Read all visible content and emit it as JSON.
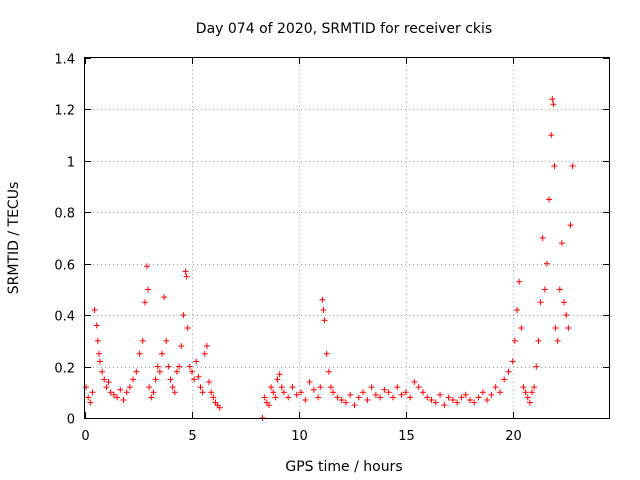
{
  "chart_data": {
    "type": "scatter",
    "title": "Day 074 of 2020, SRMTID for receiver ckis",
    "xlabel": "GPS time / hours",
    "ylabel": "SRMTID / TECUs",
    "xlim": [
      0,
      24.5
    ],
    "ylim": [
      0,
      1.4
    ],
    "x_ticks": [
      0,
      5,
      10,
      15,
      20
    ],
    "x_tick_labels": [
      "0",
      "5",
      "10",
      "15",
      "20"
    ],
    "y_ticks": [
      0,
      0.2,
      0.4,
      0.6,
      0.8,
      1.0,
      1.2,
      1.4
    ],
    "y_tick_labels": [
      "0",
      "0.2",
      "0.4",
      "0.6",
      "0.8",
      "1",
      "1.2",
      "1.4"
    ],
    "grid": true,
    "marker": "+",
    "color": "#ff0000",
    "series": [
      {
        "name": "SRMTID",
        "x": [
          0.05,
          0.15,
          0.25,
          0.35,
          0.45,
          0.55,
          0.6,
          0.65,
          0.7,
          0.8,
          0.9,
          1.0,
          1.1,
          1.2,
          1.35,
          1.5,
          1.65,
          1.8,
          1.95,
          2.1,
          2.25,
          2.4,
          2.55,
          2.7,
          2.8,
          2.9,
          2.95,
          3.0,
          3.1,
          3.2,
          3.3,
          3.4,
          3.5,
          3.6,
          3.7,
          3.8,
          3.9,
          4.0,
          4.1,
          4.2,
          4.3,
          4.4,
          4.5,
          4.6,
          4.7,
          4.75,
          4.8,
          4.9,
          5.0,
          5.1,
          5.2,
          5.3,
          5.4,
          5.5,
          5.6,
          5.7,
          5.8,
          5.9,
          6.0,
          6.1,
          6.2,
          6.3,
          8.3,
          8.4,
          8.5,
          8.6,
          8.7,
          8.8,
          8.9,
          9.0,
          9.1,
          9.2,
          9.3,
          9.5,
          9.7,
          9.9,
          10.1,
          10.3,
          10.5,
          10.7,
          10.9,
          11.0,
          11.1,
          11.15,
          11.2,
          11.3,
          11.4,
          11.5,
          11.6,
          11.8,
          12.0,
          12.2,
          12.4,
          12.6,
          12.8,
          13.0,
          13.2,
          13.4,
          13.6,
          13.8,
          14.0,
          14.2,
          14.4,
          14.6,
          14.8,
          15.0,
          15.2,
          15.4,
          15.6,
          15.8,
          16.0,
          16.2,
          16.4,
          16.6,
          16.8,
          17.0,
          17.2,
          17.4,
          17.6,
          17.8,
          18.0,
          18.2,
          18.4,
          18.6,
          18.8,
          19.0,
          19.2,
          19.4,
          19.6,
          19.8,
          20.0,
          20.1,
          20.2,
          20.3,
          20.4,
          20.5,
          20.6,
          20.7,
          20.8,
          20.9,
          21.0,
          21.1,
          21.2,
          21.3,
          21.4,
          21.5,
          21.6,
          21.7,
          21.8,
          21.85,
          21.9,
          21.95,
          22.0,
          22.1,
          22.2,
          22.3,
          22.4,
          22.5,
          22.6,
          22.7,
          22.8
        ],
        "y": [
          0.12,
          0.08,
          0.06,
          0.1,
          0.42,
          0.36,
          0.3,
          0.25,
          0.22,
          0.18,
          0.15,
          0.12,
          0.14,
          0.1,
          0.09,
          0.08,
          0.11,
          0.07,
          0.1,
          0.12,
          0.15,
          0.18,
          0.25,
          0.3,
          0.45,
          0.59,
          0.5,
          0.12,
          0.08,
          0.1,
          0.15,
          0.2,
          0.18,
          0.25,
          0.47,
          0.3,
          0.2,
          0.15,
          0.12,
          0.1,
          0.18,
          0.2,
          0.28,
          0.4,
          0.57,
          0.55,
          0.35,
          0.2,
          0.18,
          0.15,
          0.22,
          0.16,
          0.12,
          0.1,
          0.25,
          0.28,
          0.14,
          0.1,
          0.08,
          0.06,
          0.05,
          0.04,
          0.0,
          0.08,
          0.06,
          0.05,
          0.12,
          0.1,
          0.08,
          0.15,
          0.17,
          0.12,
          0.1,
          0.08,
          0.12,
          0.09,
          0.1,
          0.07,
          0.14,
          0.11,
          0.08,
          0.12,
          0.46,
          0.42,
          0.38,
          0.25,
          0.18,
          0.12,
          0.1,
          0.08,
          0.07,
          0.06,
          0.09,
          0.05,
          0.08,
          0.1,
          0.07,
          0.12,
          0.09,
          0.08,
          0.11,
          0.1,
          0.08,
          0.12,
          0.09,
          0.1,
          0.08,
          0.14,
          0.12,
          0.1,
          0.08,
          0.07,
          0.06,
          0.09,
          0.05,
          0.08,
          0.07,
          0.06,
          0.08,
          0.09,
          0.07,
          0.06,
          0.08,
          0.1,
          0.07,
          0.09,
          0.12,
          0.1,
          0.15,
          0.18,
          0.22,
          0.3,
          0.42,
          0.53,
          0.35,
          0.12,
          0.1,
          0.08,
          0.06,
          0.1,
          0.12,
          0.2,
          0.3,
          0.45,
          0.7,
          0.5,
          0.6,
          0.85,
          1.1,
          1.24,
          1.22,
          0.98,
          0.35,
          0.3,
          0.5,
          0.68,
          0.45,
          0.4,
          0.35,
          0.75,
          0.98
        ]
      }
    ]
  }
}
